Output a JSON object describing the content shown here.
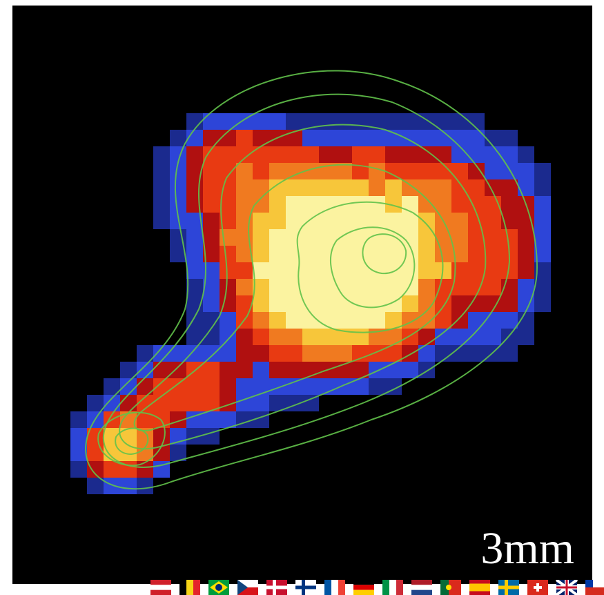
{
  "image": {
    "label": "3mm",
    "palette": [
      "#000000",
      "#1b2a8e",
      "#2d45d8",
      "#b01010",
      "#e83a12",
      "#f07a20",
      "#f7c63a",
      "#fbf3a0"
    ],
    "contour_color": "#62c24a"
  },
  "footer": {
    "flags": [
      "austria",
      "belgium",
      "brazil",
      "czech-republic",
      "denmark",
      "finland",
      "france",
      "germany",
      "italy",
      "netherlands",
      "portugal",
      "spain",
      "sweden",
      "switzerland",
      "united-kingdom",
      "chile"
    ]
  }
}
